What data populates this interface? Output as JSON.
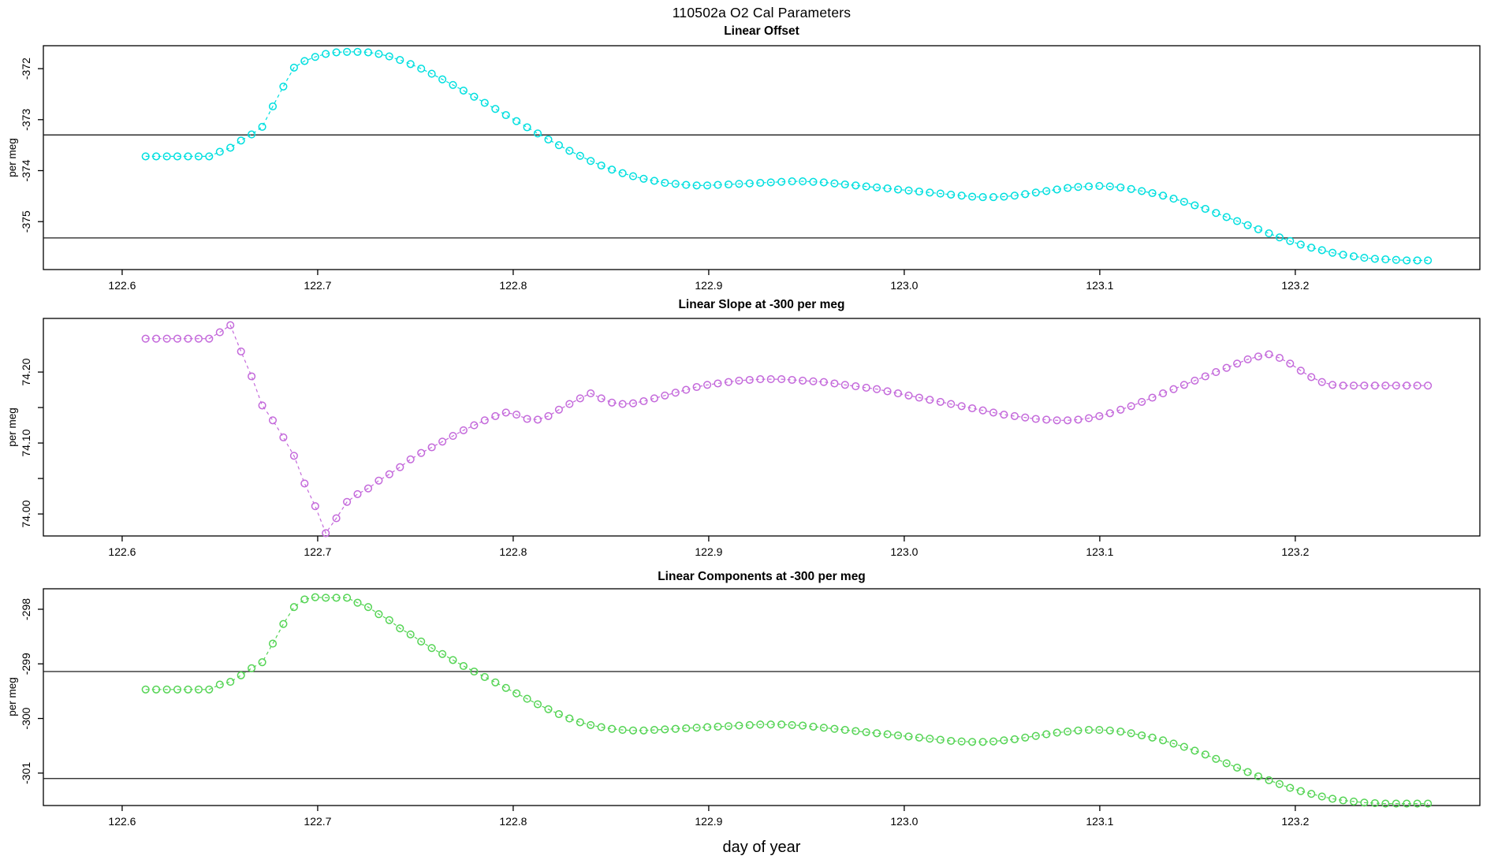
{
  "page": {
    "main_title": "110502a   O2 Cal Parameters",
    "x_axis_title": "day of year"
  },
  "chart_data": [
    {
      "type": "scatter",
      "title": "Linear Offset",
      "ylabel": "per meg",
      "xlabel": "day of year",
      "color": "#00dfdf",
      "marker": "open-circle",
      "line_style": "dashed",
      "grid": false,
      "xlim": [
        122.5597,
        123.2944
      ],
      "ylim": [
        -375.94,
        -371.55
      ],
      "xticks": [
        {
          "v": 122.6,
          "label": "122.6"
        },
        {
          "v": 122.7,
          "label": "122.7"
        },
        {
          "v": 122.8,
          "label": "122.8"
        },
        {
          "v": 122.9,
          "label": "122.9"
        },
        {
          "v": 123.0,
          "label": "123.0"
        },
        {
          "v": 123.1,
          "label": "123.1"
        },
        {
          "v": 123.2,
          "label": "123.2"
        }
      ],
      "yticks": [
        {
          "v": -372,
          "label": "-372"
        },
        {
          "v": -373,
          "label": "-373"
        },
        {
          "v": -374,
          "label": "-374"
        },
        {
          "v": -375,
          "label": "-375"
        }
      ],
      "hlines": [
        -373.3,
        -375.32
      ],
      "x_start": 122.612,
      "x_step": 0.00542,
      "values": [
        -373.72,
        -373.72,
        -373.72,
        -373.72,
        -373.72,
        -373.72,
        -373.72,
        -373.63,
        -373.55,
        -373.41,
        -373.29,
        -373.14,
        -372.74,
        -372.35,
        -371.98,
        -371.85,
        -371.77,
        -371.71,
        -371.68,
        -371.67,
        -371.67,
        -371.68,
        -371.71,
        -371.76,
        -371.83,
        -371.91,
        -372.0,
        -372.1,
        -372.21,
        -372.32,
        -372.43,
        -372.55,
        -372.67,
        -372.79,
        -372.91,
        -373.03,
        -373.15,
        -373.27,
        -373.39,
        -373.5,
        -373.61,
        -373.71,
        -373.81,
        -373.9,
        -373.98,
        -374.05,
        -374.11,
        -374.16,
        -374.2,
        -374.24,
        -374.26,
        -374.28,
        -374.29,
        -374.29,
        -374.28,
        -374.27,
        -374.26,
        -374.25,
        -374.24,
        -374.23,
        -374.22,
        -374.21,
        -374.21,
        -374.22,
        -374.23,
        -374.25,
        -374.27,
        -374.29,
        -374.31,
        -374.33,
        -374.35,
        -374.37,
        -374.39,
        -374.41,
        -374.43,
        -374.45,
        -374.47,
        -374.49,
        -374.51,
        -374.52,
        -374.52,
        -374.51,
        -374.49,
        -374.46,
        -374.43,
        -374.4,
        -374.37,
        -374.34,
        -374.32,
        -374.31,
        -374.3,
        -374.31,
        -374.33,
        -374.36,
        -374.4,
        -374.44,
        -374.49,
        -374.55,
        -374.61,
        -374.68,
        -374.75,
        -374.83,
        -374.91,
        -374.99,
        -375.07,
        -375.15,
        -375.23,
        -375.31,
        -375.38,
        -375.45,
        -375.51,
        -375.56,
        -375.61,
        -375.65,
        -375.68,
        -375.71,
        -375.73,
        -375.74,
        -375.75,
        -375.76,
        -375.76,
        -375.76
      ]
    },
    {
      "type": "scatter",
      "title": "Linear Slope at -300 per meg",
      "ylabel": "per meg",
      "xlabel": "day of year",
      "color": "#c46adb",
      "marker": "open-circle",
      "line_style": "dashed",
      "grid": false,
      "xlim": [
        122.5597,
        123.2944
      ],
      "ylim": [
        73.969,
        74.2756
      ],
      "xticks": [
        {
          "v": 122.6,
          "label": "122.6"
        },
        {
          "v": 122.7,
          "label": "122.7"
        },
        {
          "v": 122.8,
          "label": "122.8"
        },
        {
          "v": 122.9,
          "label": "122.9"
        },
        {
          "v": 123.0,
          "label": "123.0"
        },
        {
          "v": 123.1,
          "label": "123.1"
        },
        {
          "v": 123.2,
          "label": "123.2"
        }
      ],
      "yticks": [
        {
          "v": 74.2,
          "label": "74.20"
        },
        {
          "v": 74.15,
          "label": ""
        },
        {
          "v": 74.1,
          "label": "74.10"
        },
        {
          "v": 74.05,
          "label": ""
        },
        {
          "v": 74.0,
          "label": "74.00"
        }
      ],
      "hlines": [],
      "x_start": 122.612,
      "x_step": 0.00542,
      "values": [
        74.247,
        74.247,
        74.247,
        74.247,
        74.247,
        74.247,
        74.247,
        74.256,
        74.266,
        74.229,
        74.194,
        74.153,
        74.132,
        74.108,
        74.082,
        74.043,
        74.011,
        73.973,
        73.994,
        74.017,
        74.028,
        74.036,
        74.047,
        74.056,
        74.066,
        74.077,
        74.086,
        74.094,
        74.102,
        74.11,
        74.118,
        74.125,
        74.132,
        74.138,
        74.143,
        74.14,
        74.134,
        74.133,
        74.138,
        74.147,
        74.155,
        74.163,
        74.17,
        74.163,
        74.157,
        74.155,
        74.156,
        74.159,
        74.163,
        74.167,
        74.171,
        74.175,
        74.179,
        74.182,
        74.184,
        74.186,
        74.188,
        74.189,
        74.19,
        74.19,
        74.19,
        74.189,
        74.188,
        74.187,
        74.186,
        74.184,
        74.182,
        74.18,
        74.178,
        74.176,
        74.173,
        74.17,
        74.167,
        74.164,
        74.161,
        74.158,
        74.155,
        74.152,
        74.149,
        74.146,
        74.143,
        74.14,
        74.138,
        74.136,
        74.134,
        74.133,
        74.132,
        74.132,
        74.133,
        74.135,
        74.138,
        74.142,
        74.147,
        74.152,
        74.158,
        74.164,
        74.17,
        74.176,
        74.182,
        74.188,
        74.194,
        74.2,
        74.206,
        74.212,
        74.218,
        74.222,
        74.225,
        74.22,
        74.212,
        74.202,
        74.193,
        74.186,
        74.182,
        74.181,
        74.181,
        74.181,
        74.181,
        74.181,
        74.181,
        74.181,
        74.181,
        74.181
      ]
    },
    {
      "type": "scatter",
      "title": "Linear Components at -300 per meg",
      "ylabel": "per meg",
      "xlabel": "day of year",
      "color": "#55d455",
      "marker": "open-circle",
      "line_style": "dashed",
      "grid": false,
      "xlim": [
        122.5597,
        123.2944
      ],
      "ylim": [
        -301.594,
        -297.625
      ],
      "xticks": [
        {
          "v": 122.6,
          "label": "122.6"
        },
        {
          "v": 122.7,
          "label": "122.7"
        },
        {
          "v": 122.8,
          "label": "122.8"
        },
        {
          "v": 122.9,
          "label": "122.9"
        },
        {
          "v": 123.0,
          "label": "123.0"
        },
        {
          "v": 123.1,
          "label": "123.1"
        },
        {
          "v": 123.2,
          "label": "123.2"
        }
      ],
      "yticks": [
        {
          "v": -298,
          "label": "-298"
        },
        {
          "v": -299,
          "label": "-299"
        },
        {
          "v": -300,
          "label": "-300"
        },
        {
          "v": -301,
          "label": "-301"
        }
      ],
      "hlines": [
        -299.14,
        -301.1
      ],
      "x_start": 122.612,
      "x_step": 0.00542,
      "values": [
        -299.47,
        -299.47,
        -299.47,
        -299.47,
        -299.47,
        -299.47,
        -299.47,
        -299.38,
        -299.33,
        -299.21,
        -299.08,
        -298.97,
        -298.63,
        -298.27,
        -297.96,
        -297.82,
        -297.78,
        -297.79,
        -297.79,
        -297.79,
        -297.88,
        -297.96,
        -298.09,
        -298.2,
        -298.35,
        -298.46,
        -298.59,
        -298.71,
        -298.82,
        -298.93,
        -299.04,
        -299.14,
        -299.24,
        -299.34,
        -299.44,
        -299.54,
        -299.64,
        -299.74,
        -299.83,
        -299.92,
        -300.0,
        -300.07,
        -300.12,
        -300.16,
        -300.19,
        -300.21,
        -300.22,
        -300.22,
        -300.21,
        -300.2,
        -300.19,
        -300.18,
        -300.17,
        -300.16,
        -300.15,
        -300.14,
        -300.13,
        -300.12,
        -300.11,
        -300.11,
        -300.11,
        -300.12,
        -300.13,
        -300.15,
        -300.17,
        -300.19,
        -300.21,
        -300.23,
        -300.25,
        -300.27,
        -300.29,
        -300.31,
        -300.33,
        -300.35,
        -300.37,
        -300.39,
        -300.41,
        -300.42,
        -300.43,
        -300.43,
        -300.42,
        -300.4,
        -300.38,
        -300.35,
        -300.32,
        -300.29,
        -300.26,
        -300.24,
        -300.22,
        -300.21,
        -300.21,
        -300.22,
        -300.24,
        -300.27,
        -300.31,
        -300.35,
        -300.4,
        -300.46,
        -300.52,
        -300.59,
        -300.66,
        -300.74,
        -300.82,
        -300.9,
        -300.98,
        -301.06,
        -301.13,
        -301.2,
        -301.27,
        -301.33,
        -301.38,
        -301.43,
        -301.47,
        -301.5,
        -301.52,
        -301.54,
        -301.55,
        -301.56,
        -301.56,
        -301.56,
        -301.56,
        -301.56
      ]
    }
  ]
}
